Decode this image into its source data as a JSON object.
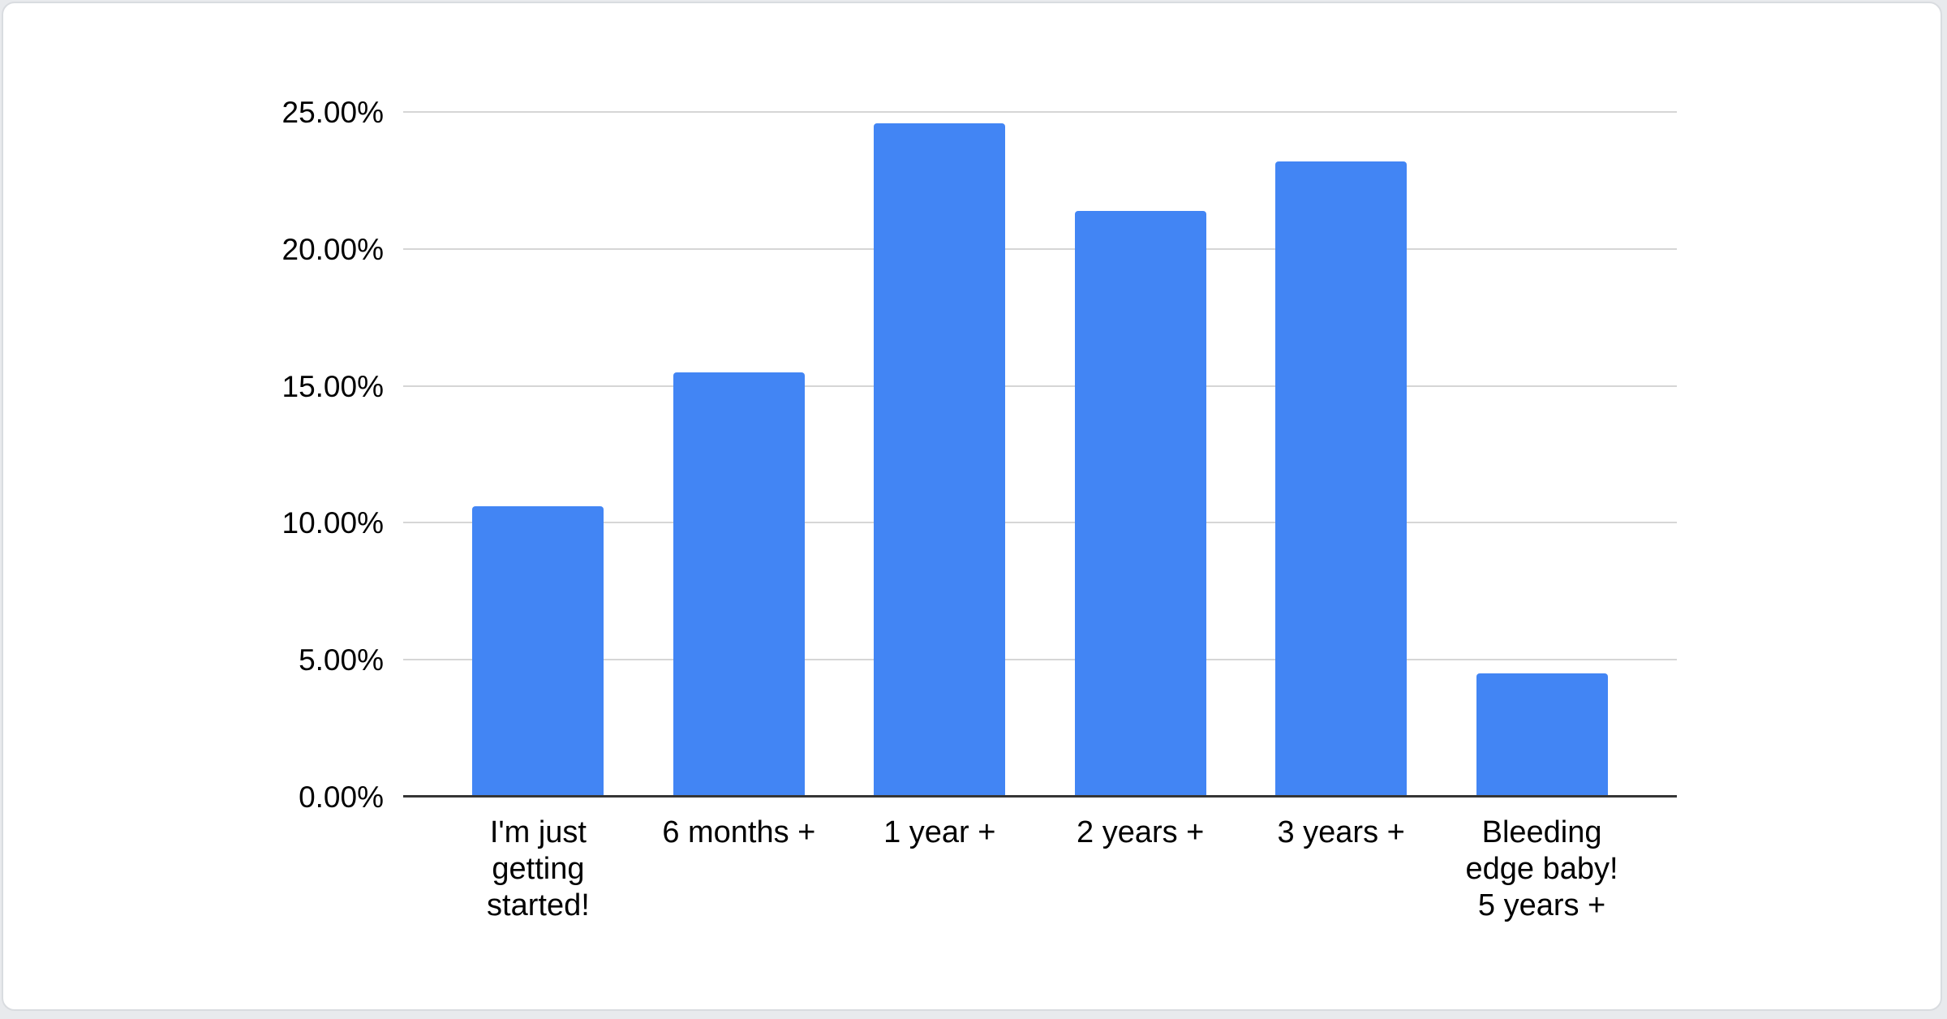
{
  "colors": {
    "bar": "#4285f4",
    "gridline": "#d6d6d6",
    "baseline": "#363636",
    "text": "#000000",
    "card_background": "#ffffff",
    "card_border": "#d9dce0",
    "page_background": "#e8eaed"
  },
  "chart_data": {
    "type": "bar",
    "title": "",
    "categories": [
      "I'm just\ngetting\nstarted!",
      "6 months +",
      "1 year +",
      "2 years +",
      "3 years +",
      "Bleeding\nedge baby!\n5 years +"
    ],
    "values": [
      10.6,
      15.5,
      24.6,
      21.4,
      23.2,
      4.5
    ],
    "value_unit": "%",
    "ylabel": "",
    "xlabel": "",
    "ylim": [
      0,
      25
    ],
    "grid": true,
    "legend": "none",
    "y_ticks": [
      {
        "value": 0,
        "label": "0.00%"
      },
      {
        "value": 5,
        "label": "5.00%"
      },
      {
        "value": 10,
        "label": "10.00%"
      },
      {
        "value": 15,
        "label": "15.00%"
      },
      {
        "value": 20,
        "label": "20.00%"
      },
      {
        "value": 25,
        "label": "25.00%"
      }
    ]
  }
}
